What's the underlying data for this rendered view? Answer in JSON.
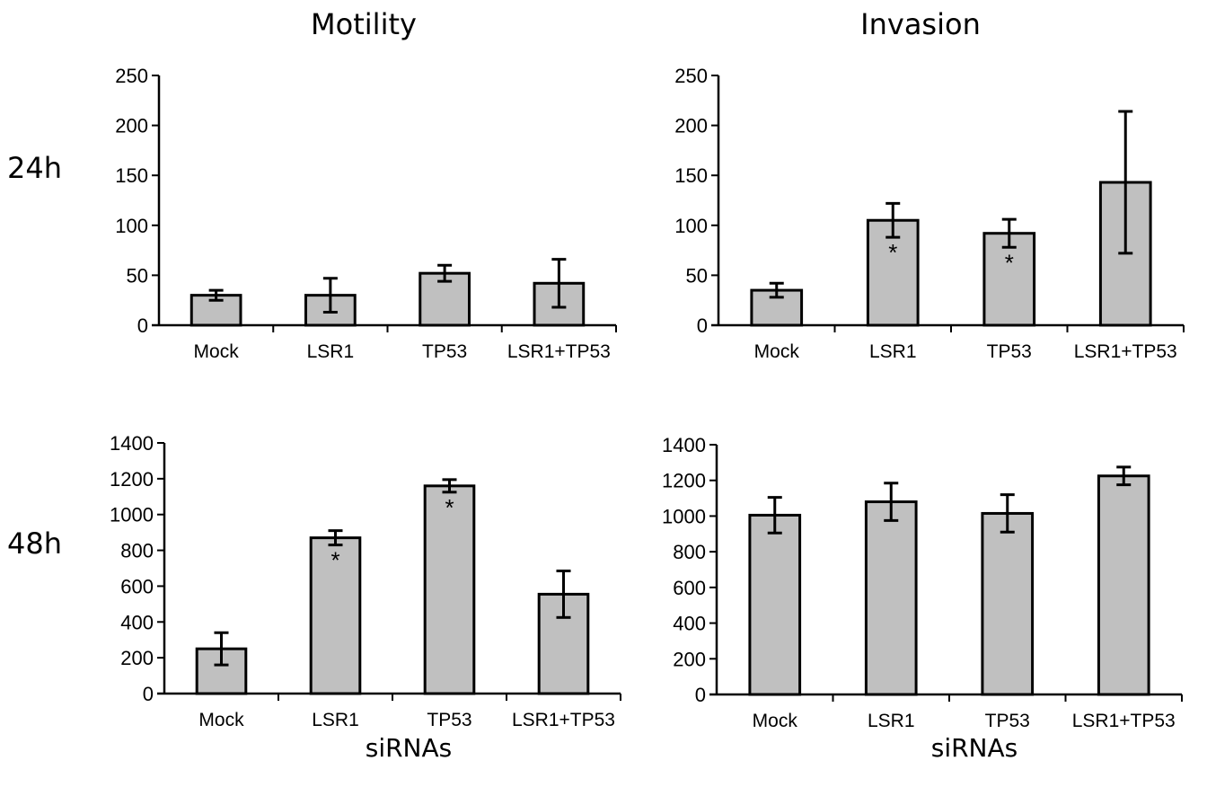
{
  "column_titles": [
    "Motility",
    "Invasion"
  ],
  "row_labels": [
    "24h",
    "48h"
  ],
  "xlabel": "siRNAs",
  "colors": {
    "bar_fill": "#c0c0c0",
    "bar_stroke": "#000000"
  },
  "chart_data": [
    {
      "type": "bar",
      "categories": [
        "Mock",
        "LSR1",
        "TP53",
        "LSR1+TP53"
      ],
      "values": [
        30,
        30,
        52,
        42
      ],
      "errors": [
        5,
        17,
        8,
        24
      ],
      "significant": [
        false,
        false,
        false,
        false
      ],
      "yticks": [
        0,
        50,
        100,
        150,
        200,
        250
      ],
      "ylim": [
        0,
        250
      ],
      "grid": false,
      "legend": "none"
    },
    {
      "type": "bar",
      "categories": [
        "Mock",
        "LSR1",
        "TP53",
        "LSR1+TP53"
      ],
      "values": [
        35,
        105,
        92,
        143
      ],
      "errors": [
        7,
        17,
        14,
        71
      ],
      "significant": [
        false,
        true,
        true,
        false
      ],
      "yticks": [
        0,
        50,
        100,
        150,
        200,
        250
      ],
      "ylim": [
        0,
        250
      ],
      "grid": false,
      "legend": "none"
    },
    {
      "type": "bar",
      "categories": [
        "Mock",
        "LSR1",
        "TP53",
        "LSR1+TP53"
      ],
      "values": [
        250,
        870,
        1160,
        555
      ],
      "errors": [
        90,
        40,
        35,
        130
      ],
      "significant": [
        false,
        true,
        true,
        false
      ],
      "yticks": [
        0,
        200,
        400,
        600,
        800,
        1000,
        1200,
        1400
      ],
      "ylim": [
        0,
        1400
      ],
      "grid": false,
      "legend": "none"
    },
    {
      "type": "bar",
      "categories": [
        "Mock",
        "LSR1",
        "TP53",
        "LSR1+TP53"
      ],
      "values": [
        1005,
        1080,
        1015,
        1225
      ],
      "errors": [
        100,
        105,
        105,
        50
      ],
      "significant": [
        false,
        false,
        false,
        false
      ],
      "yticks": [
        0,
        200,
        400,
        600,
        800,
        1000,
        1200,
        1400
      ],
      "ylim": [
        0,
        1400
      ],
      "grid": false,
      "legend": "none"
    }
  ],
  "significance_marker": "*"
}
